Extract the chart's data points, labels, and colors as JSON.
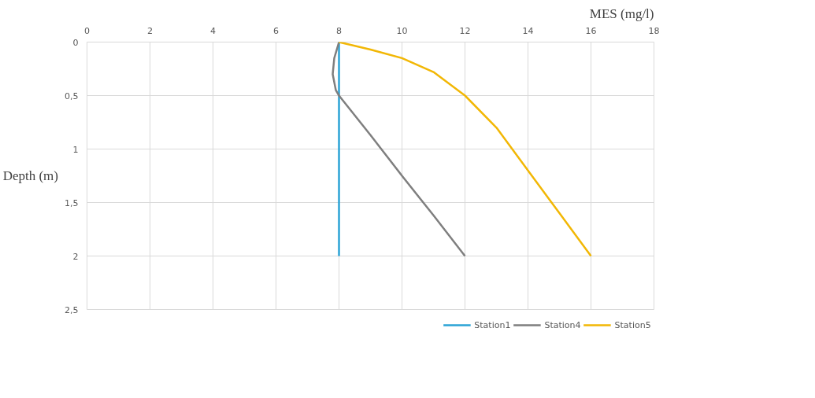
{
  "chart_data": {
    "type": "line",
    "xlabel": "MES (mg/l)",
    "ylabel": "Depth (m)",
    "xlim": [
      0,
      18
    ],
    "xticks": [
      0,
      2,
      4,
      6,
      8,
      10,
      12,
      14,
      16,
      18
    ],
    "ylim": [
      2.5,
      0
    ],
    "yticks": [
      0,
      {
        "value": 0.5,
        "label": "0,5"
      },
      1,
      {
        "value": 1.5,
        "label": "1,5"
      },
      2,
      {
        "value": 2.5,
        "label": "2,5"
      }
    ],
    "grid": true,
    "legend": "bottom",
    "marker": "none",
    "line_style": "solid",
    "series": [
      {
        "name": "Station1",
        "color": "#2ba3d6",
        "x": [
          8,
          8
        ],
        "values": [
          0,
          2
        ]
      },
      {
        "name": "Station4",
        "color": "#7f7f7f",
        "x": [
          8,
          7.85,
          7.8,
          7.9,
          8,
          9,
          10,
          11,
          12
        ],
        "values": [
          0,
          0.15,
          0.3,
          0.45,
          0.5,
          0.87,
          1.25,
          1.62,
          2
        ]
      },
      {
        "name": "Station5",
        "color": "#f2b705",
        "x": [
          8,
          9,
          10,
          11,
          12,
          13,
          14,
          15,
          16
        ],
        "values": [
          0,
          0.07,
          0.15,
          0.28,
          0.5,
          0.8,
          1.2,
          1.6,
          2
        ]
      }
    ]
  }
}
